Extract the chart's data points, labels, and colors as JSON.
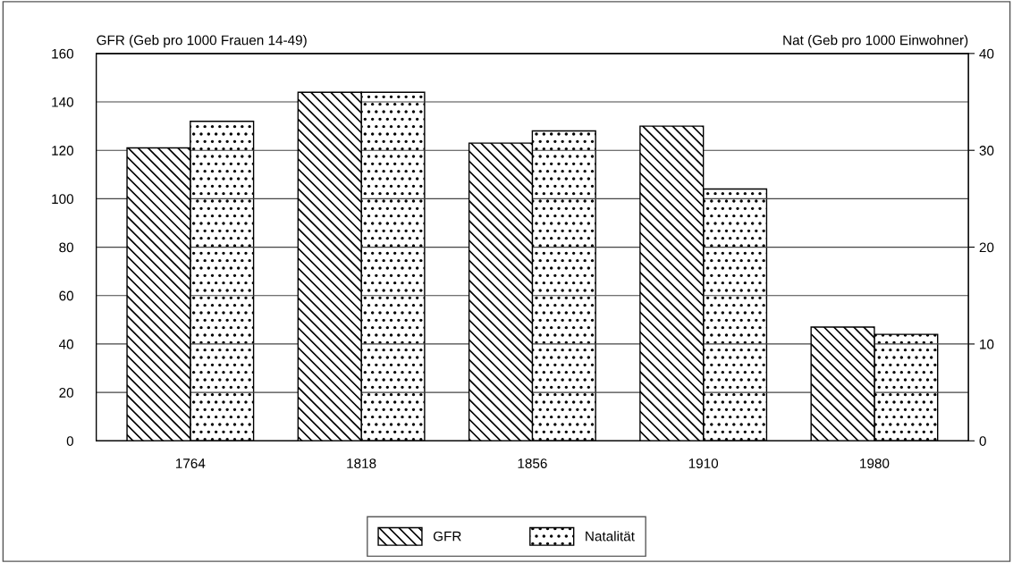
{
  "chart_data": {
    "type": "bar",
    "categories": [
      "1764",
      "1818",
      "1856",
      "1910",
      "1980"
    ],
    "series": [
      {
        "name": "GFR",
        "color": "#000000",
        "values": [
          121,
          144,
          123,
          130,
          47
        ]
      },
      {
        "name": "Natalität",
        "color": "#000000",
        "axis": "y2",
        "values": [
          33,
          36,
          32,
          26,
          11
        ]
      }
    ],
    "ylabel": "GFR (Geb pro 1000 Frauen 14-49)",
    "y2label": "Nat (Geb pro 1000 Einwohner)",
    "ylim": [
      0,
      160
    ],
    "yticks": [
      0,
      20,
      40,
      60,
      80,
      100,
      120,
      140,
      160
    ],
    "y2lim": [
      0,
      40
    ],
    "y2ticks": [
      0,
      10,
      20,
      30,
      40
    ],
    "grid": "y",
    "legend": "bottom"
  }
}
